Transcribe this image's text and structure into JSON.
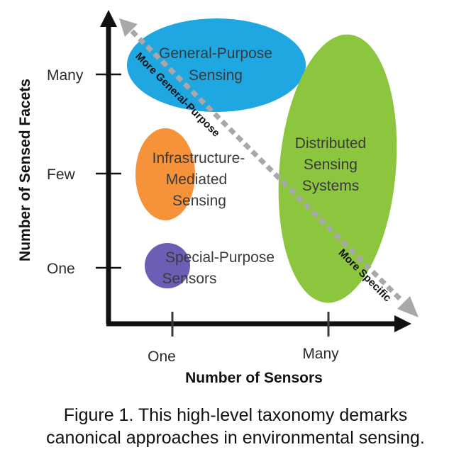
{
  "diagram": {
    "y_axis_label": "Number of Sensed Facets",
    "x_axis_label": "Number of Sensors",
    "y_ticks": [
      "Many",
      "Few",
      "One"
    ],
    "x_ticks": [
      "One",
      "Many"
    ],
    "diagonal_labels": {
      "upper": "More General-Purpose",
      "lower": "More Specific"
    },
    "regions": {
      "general_purpose": {
        "line1": "General-Purpose",
        "line2": "Sensing",
        "color": "#1ea7e1"
      },
      "infrastructure": {
        "line1": "Infrastructure-",
        "line2": "Mediated",
        "line3": "Sensing",
        "color": "#f5923a"
      },
      "special_purpose": {
        "line1": "Special-Purpose",
        "line2": "Sensors",
        "color": "#6b5fb5"
      },
      "distributed": {
        "line1": "Distributed",
        "line2": "Sensing",
        "line3": "Systems",
        "color": "#8cc63f"
      }
    },
    "colors": {
      "axis": "#111111",
      "diagonal": "#a8a8a8",
      "label_text": "#3a3a3a"
    }
  },
  "caption": {
    "line1": "Figure 1. This high-level taxonomy demarks",
    "line2": "canonical approaches in environmental sensing."
  }
}
